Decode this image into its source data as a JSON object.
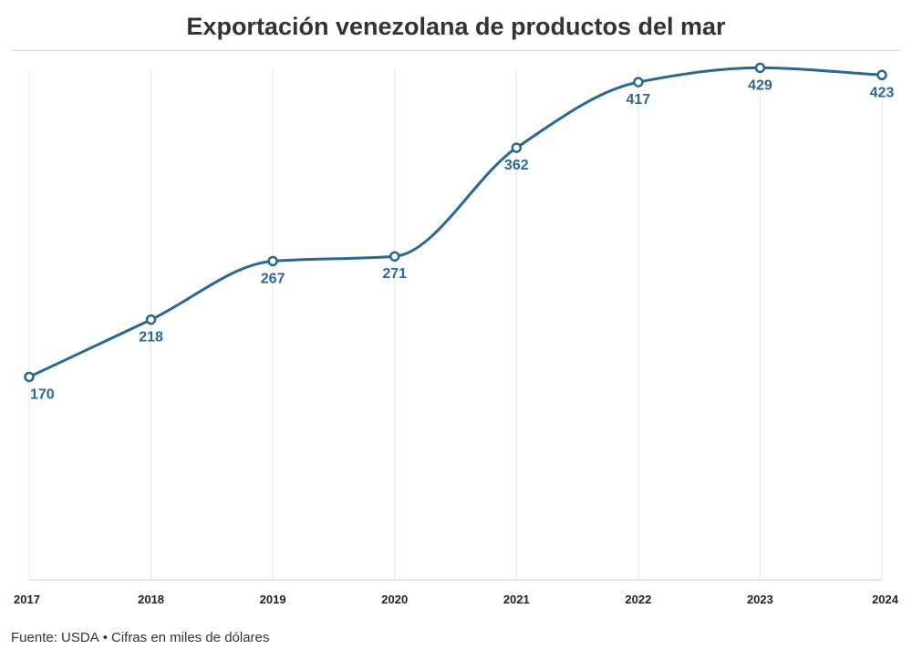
{
  "header": {
    "title": "Exportación venezolana de productos del mar"
  },
  "footer": {
    "source": "Fuente: USDA",
    "separator": "•",
    "note": "Cifras en miles de dólares"
  },
  "colors": {
    "line": "#2a6791",
    "label": "#2a6791",
    "grid": "#e6e6e6",
    "axis": "#cccccc",
    "tick_text": "#222222"
  },
  "chart_data": {
    "type": "line",
    "title": "Exportación venezolana de productos del mar",
    "xlabel": "",
    "ylabel": "",
    "categories": [
      "2017",
      "2018",
      "2019",
      "2020",
      "2021",
      "2022",
      "2023",
      "2024"
    ],
    "series": [
      {
        "name": "Exportación",
        "values": [
          170,
          218,
          267,
          271,
          362,
          417,
          429,
          423
        ]
      }
    ],
    "data_labels": [
      "170",
      "218",
      "267",
      "271",
      "362",
      "417",
      "429",
      "423"
    ],
    "ylim": [
      0,
      440
    ],
    "grid": "vertical",
    "smooth": true
  }
}
